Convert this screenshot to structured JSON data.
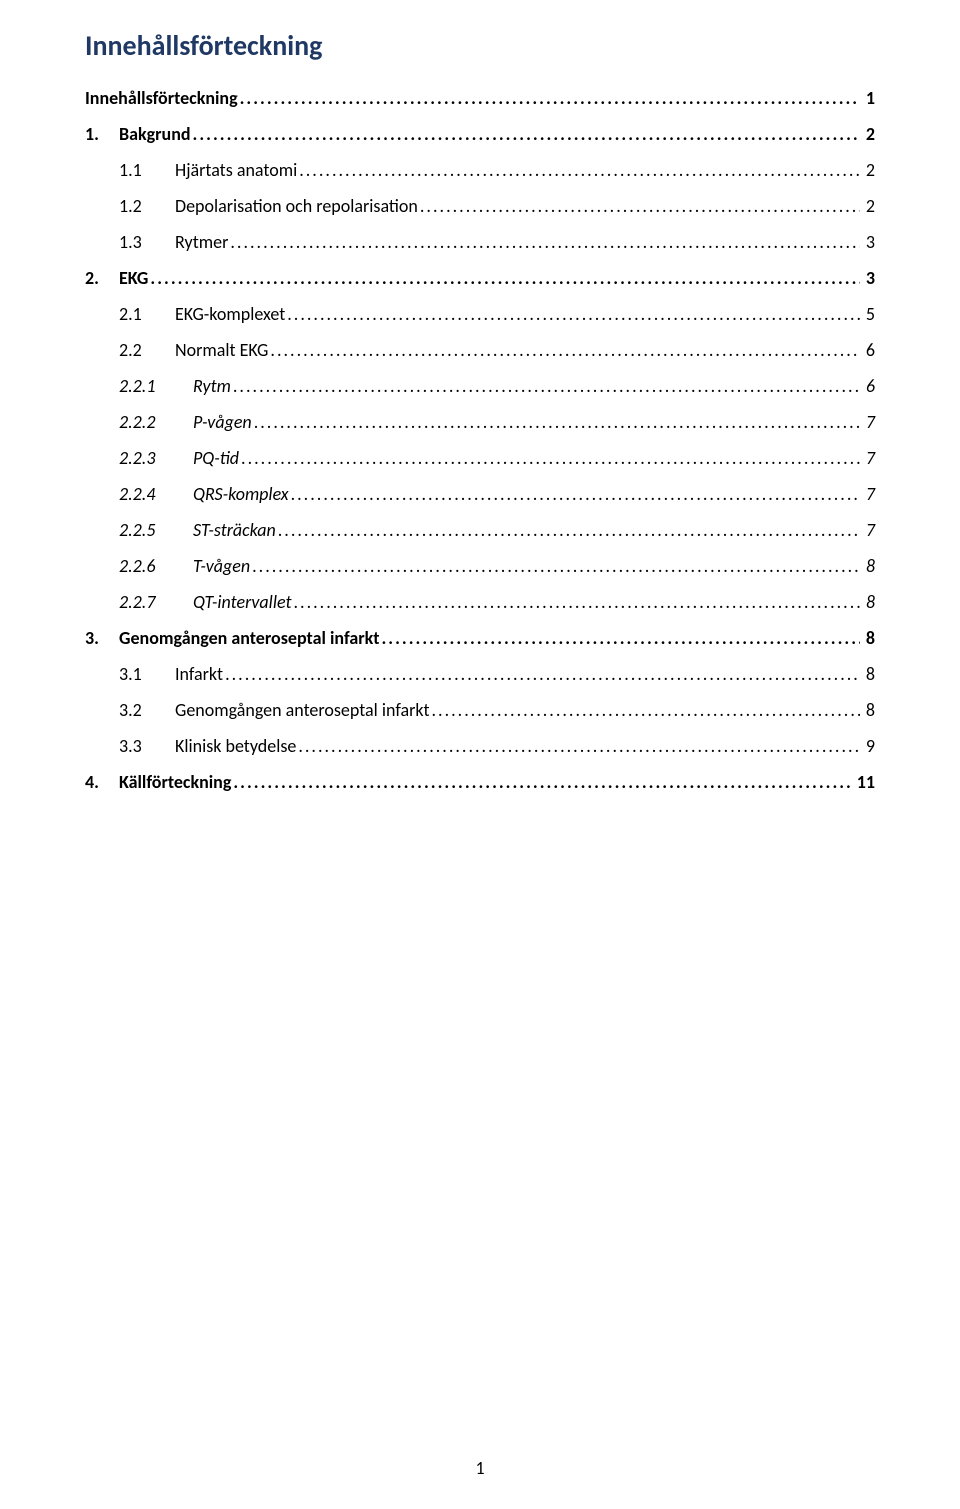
{
  "colors": {
    "title_color": "#1f3864",
    "text_color": "#000000",
    "background": "#ffffff"
  },
  "typography": {
    "title_fontsize_pt": 20,
    "toc_fontsize_pt": 13
  },
  "title": "Innehållsförteckning",
  "page_number": "1",
  "toc": [
    {
      "level": 0,
      "num": "",
      "label": "Innehållsförteckning",
      "page": "1"
    },
    {
      "level": 1,
      "num": "1.",
      "label": "Bakgrund",
      "page": "2"
    },
    {
      "level": 2,
      "num": "1.1",
      "label": "Hjärtats anatomi",
      "page": "2"
    },
    {
      "level": 2,
      "num": "1.2",
      "label": "Depolarisation och repolarisation",
      "page": "2"
    },
    {
      "level": 2,
      "num": "1.3",
      "label": "Rytmer",
      "page": "3"
    },
    {
      "level": 1,
      "num": "2.",
      "label": "EKG",
      "page": "3"
    },
    {
      "level": 2,
      "num": "2.1",
      "label": "EKG-komplexet",
      "page": "5"
    },
    {
      "level": 2,
      "num": "2.2",
      "label": "Normalt EKG",
      "page": "6"
    },
    {
      "level": 3,
      "num": "2.2.1",
      "label": "Rytm",
      "page": "6"
    },
    {
      "level": 3,
      "num": "2.2.2",
      "label": "P-vågen",
      "page": "7"
    },
    {
      "level": 3,
      "num": "2.2.3",
      "label": "PQ-tid",
      "page": "7"
    },
    {
      "level": 3,
      "num": "2.2.4",
      "label": "QRS-komplex",
      "page": "7"
    },
    {
      "level": 3,
      "num": "2.2.5",
      "label": "ST-sträckan",
      "page": "7"
    },
    {
      "level": 3,
      "num": "2.2.6",
      "label": "T-vågen",
      "page": "8"
    },
    {
      "level": 3,
      "num": "2.2.7",
      "label": "QT-intervallet",
      "page": "8"
    },
    {
      "level": 1,
      "num": "3.",
      "label": "Genomgången anteroseptal infarkt",
      "page": "8"
    },
    {
      "level": 2,
      "num": "3.1",
      "label": "Infarkt",
      "page": "8"
    },
    {
      "level": 2,
      "num": "3.2",
      "label": "Genomgången anteroseptal infarkt",
      "page": "8"
    },
    {
      "level": 2,
      "num": "3.3",
      "label": "Klinisk betydelse",
      "page": "9"
    },
    {
      "level": 1,
      "num": "4.",
      "label": "Källförteckning",
      "page": "11"
    }
  ]
}
